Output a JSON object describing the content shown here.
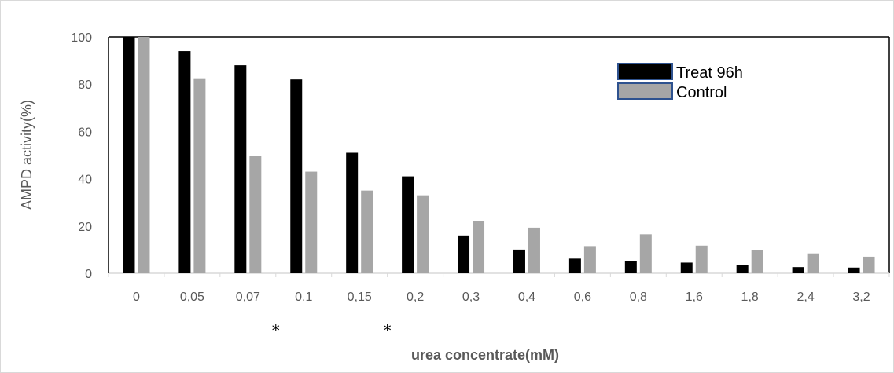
{
  "chart_data": {
    "type": "bar",
    "title": "",
    "xlabel": "urea concentrate(mM)",
    "ylabel": "AMPD activity(%)",
    "ylim": [
      0,
      100
    ],
    "yticks": [
      "0",
      "20",
      "40",
      "60",
      "80",
      "100"
    ],
    "categories": [
      "0",
      "0,05",
      "0,07",
      "0,1",
      "0,15",
      "0,2",
      "0,3",
      "0,4",
      "0,6",
      "0,8",
      "1,6",
      "1,8",
      "2,4",
      "3,2"
    ],
    "series": [
      {
        "name": "Treat 96h",
        "color": "#000000",
        "values": [
          100,
          94,
          88,
          82,
          51,
          41,
          16,
          10,
          6.2,
          5,
          4.5,
          3.4,
          2.6,
          2.4
        ]
      },
      {
        "name": "Control",
        "color": "#a6a6a6",
        "values": [
          100,
          82.5,
          49.5,
          43,
          35,
          33,
          22,
          19.3,
          11.5,
          16.5,
          11.7,
          9.8,
          8.4,
          7
        ]
      }
    ],
    "annotations": [
      {
        "text": "*",
        "category": "0,07"
      },
      {
        "text": "*",
        "category": "0,15"
      }
    ],
    "legend_position": "top-right",
    "grid": false
  }
}
